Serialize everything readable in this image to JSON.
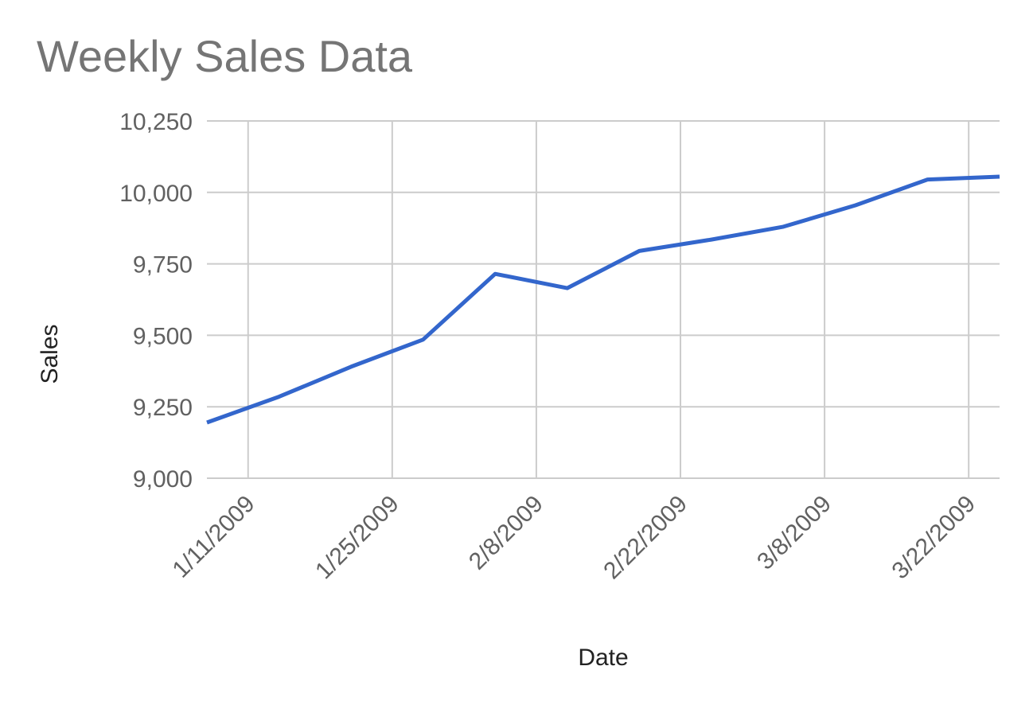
{
  "chart_data": {
    "type": "line",
    "title": "Weekly Sales Data",
    "xlabel": "Date",
    "ylabel": "Sales",
    "ylim": [
      9000,
      10250
    ],
    "yticks": [
      9000,
      9250,
      9500,
      9750,
      10000,
      10250
    ],
    "ytick_labels": [
      "9,000",
      "9,250",
      "9,500",
      "9,750",
      "10,000",
      "10,250"
    ],
    "xticks": [
      "2009-01-11",
      "2009-01-25",
      "2009-02-08",
      "2009-02-22",
      "2009-03-08",
      "2009-03-22"
    ],
    "xtick_labels": [
      "1/11/2009",
      "1/25/2009",
      "2/8/2009",
      "2/22/2009",
      "3/8/2009",
      "3/22/2009"
    ],
    "xlim": [
      "2009-01-07",
      "2009-03-25"
    ],
    "grid": true,
    "series": [
      {
        "color": "#3366cc",
        "x": [
          "2009-01-07",
          "2009-01-14",
          "2009-01-21",
          "2009-01-28",
          "2009-02-04",
          "2009-02-11",
          "2009-02-18",
          "2009-02-25",
          "2009-03-04",
          "2009-03-11",
          "2009-03-18",
          "2009-03-25"
        ],
        "values": [
          9195,
          9285,
          9390,
          9485,
          9715,
          9665,
          9795,
          9835,
          9880,
          9955,
          10045,
          10055
        ]
      }
    ]
  }
}
